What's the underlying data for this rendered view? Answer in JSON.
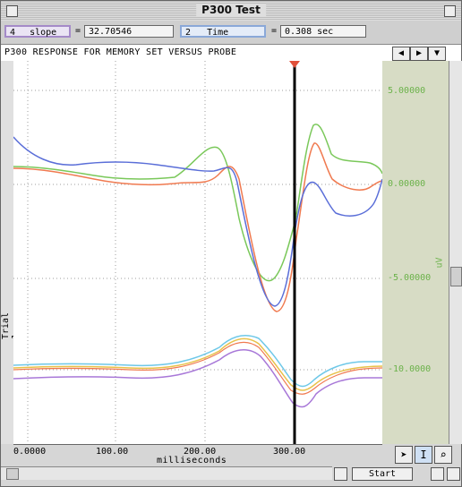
{
  "window": {
    "title": "P300 Test"
  },
  "toolbar": {
    "channel_num": "4",
    "channel_name": "slope",
    "eq1": "=",
    "value": "32.70546",
    "channel2_num": "2",
    "channel2_name": "Time",
    "eq2": "=",
    "time_value": "0.308 sec"
  },
  "description": "P300 RESPONSE FOR MEMORY SET VERSUS PROBE",
  "side_label": "Trial 1",
  "y_axis": {
    "ticks": [
      "5.00000",
      "0.00000",
      "-5.00000",
      "-10.0000"
    ],
    "unit": "uV"
  },
  "x_axis": {
    "ticks": [
      "0.0000",
      "100.00",
      "200.00",
      "300.00"
    ],
    "label": "milliseconds"
  },
  "buttons": {
    "start": "Start"
  },
  "icons": {
    "close": "close-box-icon",
    "zoom": "zoom-box-icon",
    "left": "left-arrow-icon",
    "right": "right-arrow-icon",
    "down": "down-arrow-icon",
    "arrow_tool": "arrow-cursor-icon",
    "ibeam_tool": "ibeam-cursor-icon",
    "zoom_tool": "magnifier-icon"
  },
  "colors": {
    "green": "#7ac85a",
    "orange": "#f07a50",
    "blue": "#5a6ed8",
    "cyan": "#6ec8e8",
    "yellow": "#e8c24a",
    "purple": "#a878d8",
    "axis_text": "#6bb24a"
  }
}
